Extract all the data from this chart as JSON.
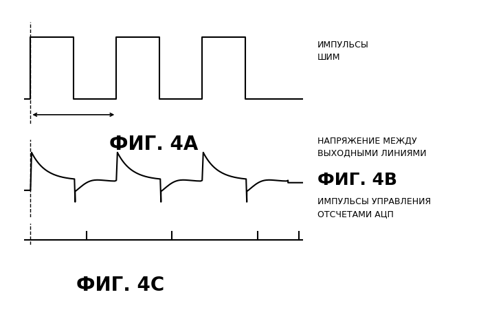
{
  "title_4A": "ФИГ. 4A",
  "title_4B": "ФИГ. 4B",
  "title_4C": "ФИГ. 4C",
  "label_pwm": "ИМПУЛЬСЫ\nШИМ",
  "label_voltage": "НАПРЯЖЕНИЕ МЕЖДУ\nВЫХОДНЫМИ ЛИНИЯМИ",
  "label_adc": "ИМПУЛЬСЫ УПРАВЛЕНИЯ\nОТСЧЕТАМИ АЦП",
  "bg_color": "#ffffff",
  "line_color": "#000000",
  "fig_width": 7.0,
  "fig_height": 4.51,
  "dpi": 100
}
